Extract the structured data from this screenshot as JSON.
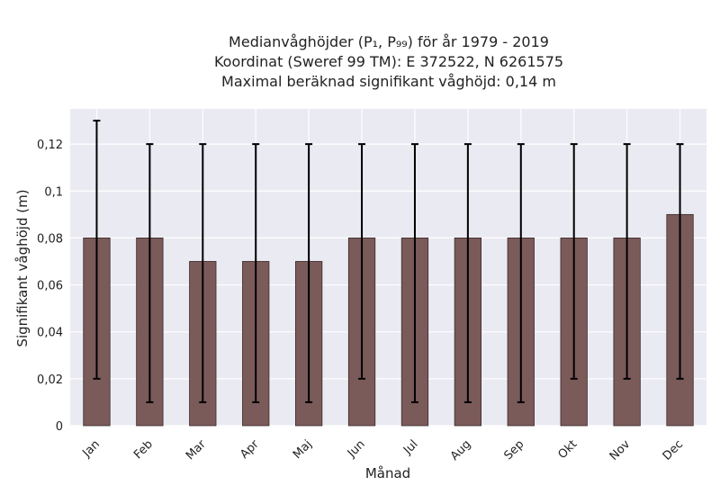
{
  "chart_data": {
    "type": "bar",
    "title_lines": [
      "Medianvåghöjder (P₁, P₉₉) för år 1979 - 2019",
      "Koordinat (Sweref 99 TM): E 372522, N 6261575",
      "Maximal beräknad signifikant våghöjd: 0,14 m"
    ],
    "xlabel": "Månad",
    "ylabel": "Signifikant våghöjd (m)",
    "categories": [
      "Jan",
      "Feb",
      "Mar",
      "Apr",
      "Maj",
      "Jun",
      "Jul",
      "Aug",
      "Sep",
      "Okt",
      "Nov",
      "Dec"
    ],
    "values": [
      0.08,
      0.08,
      0.07,
      0.07,
      0.07,
      0.08,
      0.08,
      0.08,
      0.08,
      0.08,
      0.08,
      0.09
    ],
    "error_low": [
      0.02,
      0.01,
      0.01,
      0.01,
      0.01,
      0.02,
      0.01,
      0.01,
      0.01,
      0.02,
      0.02,
      0.02
    ],
    "error_high": [
      0.13,
      0.12,
      0.12,
      0.12,
      0.12,
      0.12,
      0.12,
      0.12,
      0.12,
      0.12,
      0.12,
      0.12
    ],
    "ylim": [
      0,
      0.135
    ],
    "yticks": [
      0,
      0.02,
      0.04,
      0.06,
      0.08,
      0.1,
      0.12
    ],
    "ytick_labels": [
      "0",
      "0,02",
      "0,04",
      "0,06",
      "0,08",
      "0,1",
      "0,12"
    ],
    "grid": true,
    "colors": {
      "bar": "#7b5a5a",
      "bar_edge": "#3a2a2a",
      "error": "#000000",
      "background": "#eaeaf2",
      "grid": "#ffffff"
    }
  }
}
